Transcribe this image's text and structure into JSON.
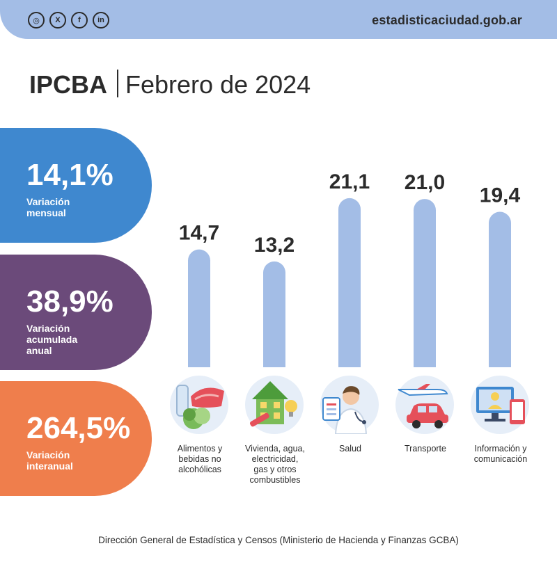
{
  "header": {
    "social": [
      {
        "icon": "instagram-icon",
        "glyph": "◎"
      },
      {
        "icon": "x-icon",
        "glyph": "X"
      },
      {
        "icon": "facebook-icon",
        "glyph": "f"
      },
      {
        "icon": "linkedin-icon",
        "glyph": "in"
      }
    ],
    "site": "estadisticaciudad.gob.ar"
  },
  "title": {
    "main": "IPCBA",
    "period": "Febrero de 2024"
  },
  "stats": [
    {
      "value": "14,1%",
      "label_lines": [
        "Variación",
        "mensual"
      ],
      "color": "#3f88cf"
    },
    {
      "value": "38,9%",
      "label_lines": [
        "Variación",
        "acumulada",
        "anual"
      ],
      "color": "#6b4a7a"
    },
    {
      "value": "264,5%",
      "label_lines": [
        "Variación",
        "interanual"
      ],
      "color": "#ef7e4c"
    }
  ],
  "chart_data": {
    "type": "bar",
    "categories": [
      "Alimentos y bebidas no alcohólicas",
      "Vivienda, agua, electricidad, gas y otros combustibles",
      "Salud",
      "Transporte",
      "Información y comunicación"
    ],
    "values": [
      14.7,
      13.2,
      21.1,
      21.0,
      19.4
    ],
    "value_labels": [
      "14,7",
      "13,2",
      "21,1",
      "21,0",
      "19,4"
    ],
    "category_lines": [
      [
        "Alimentos y",
        "bebidas no",
        "alcohólicas"
      ],
      [
        "Vivienda, agua,",
        "electricidad,",
        "gas y otros",
        "combustibles"
      ],
      [
        "Salud"
      ],
      [
        "Transporte"
      ],
      [
        "Información y",
        "comunicación"
      ]
    ],
    "category_icons": [
      "food-icon",
      "house-icon",
      "doctor-icon",
      "transport-icon",
      "computer-icon"
    ],
    "bar_color": "#a3bde6",
    "ylim": [
      0,
      25
    ]
  },
  "footer": "Dirección General de Estadística y Censos (Ministerio de Hacienda y Finanzas GCBA)"
}
